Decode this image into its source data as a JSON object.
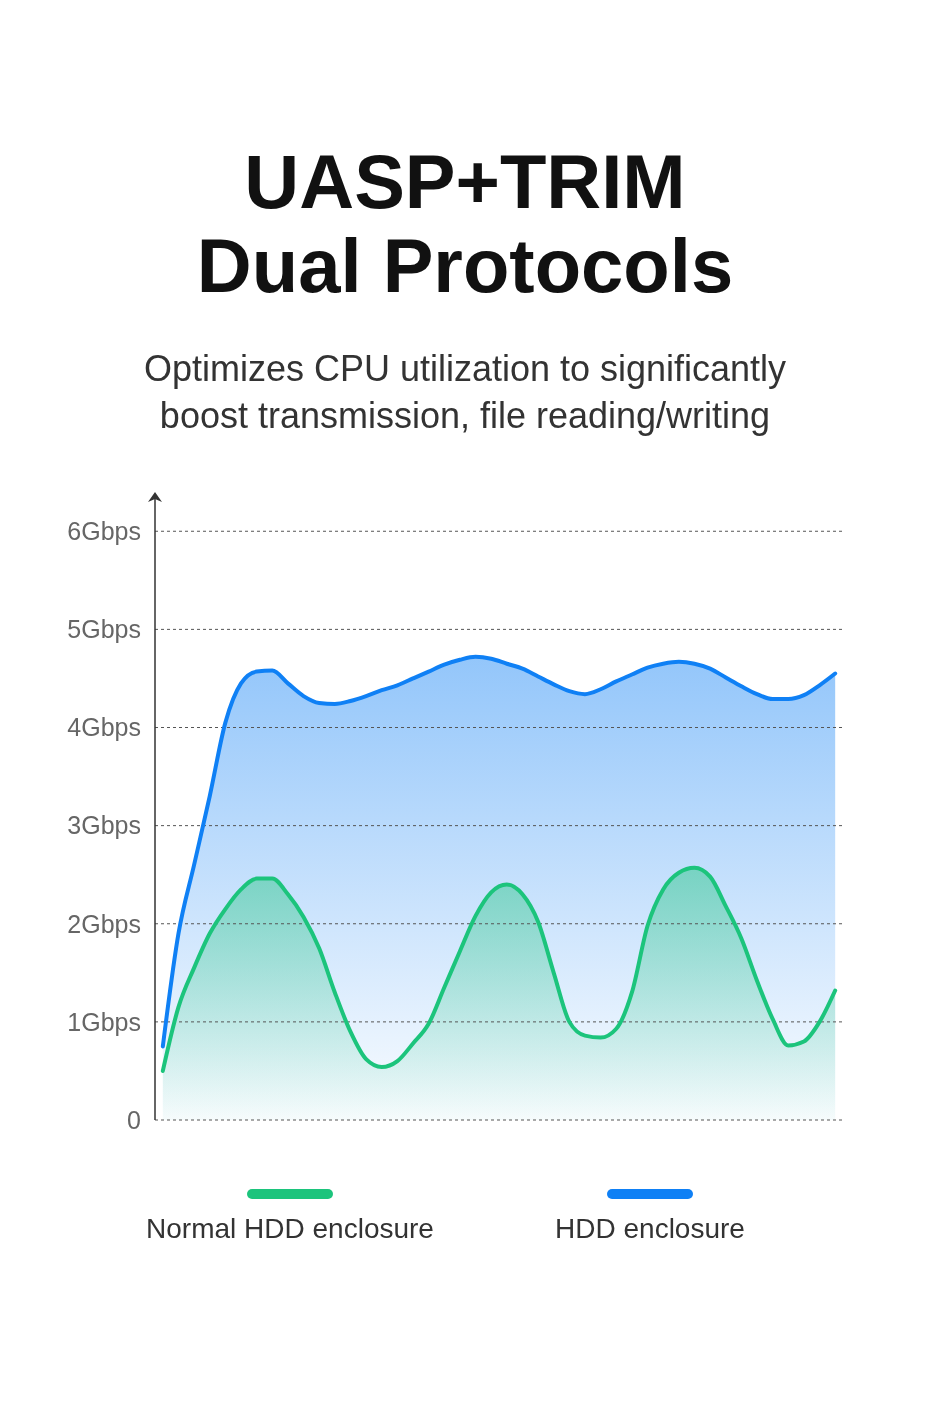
{
  "chart_data": {
    "type": "area",
    "title": "UASP+TRIM\nDual Protocols",
    "subtitle": "Optimizes CPU utilization to significantly\nboost transmission, file reading/writing",
    "categories": [
      null,
      null,
      null,
      null,
      null,
      null,
      null,
      null,
      null,
      null,
      null,
      null,
      null,
      null,
      null,
      null,
      null,
      null,
      null,
      null,
      null,
      null,
      null,
      null,
      null,
      null,
      null,
      null,
      null,
      null,
      null,
      null,
      null,
      null,
      null,
      null,
      null,
      null,
      null,
      null,
      null,
      null,
      null,
      null
    ],
    "series": [
      {
        "name": "Normal HDD enclosure",
        "color": "#1cc47c",
        "values": [
          0.5,
          1.15,
          1.55,
          1.9,
          2.15,
          2.35,
          2.46,
          2.46,
          2.3,
          2.07,
          1.75,
          1.3,
          0.9,
          0.62,
          0.54,
          0.6,
          0.78,
          0.98,
          1.35,
          1.72,
          2.08,
          2.32,
          2.4,
          2.3,
          2.02,
          1.5,
          1.0,
          0.86,
          0.84,
          0.93,
          1.3,
          1.98,
          2.35,
          2.52,
          2.57,
          2.48,
          2.18,
          1.85,
          1.42,
          1.03,
          0.76,
          0.8,
          1.0,
          1.32
        ]
      },
      {
        "name": "HDD enclosure",
        "color": "#0f80f5",
        "values": [
          0.75,
          1.9,
          2.6,
          3.3,
          4.05,
          4.45,
          4.57,
          4.58,
          4.45,
          4.32,
          4.25,
          4.24,
          4.27,
          4.32,
          4.38,
          4.43,
          4.5,
          4.57,
          4.64,
          4.69,
          4.72,
          4.7,
          4.65,
          4.6,
          4.52,
          4.44,
          4.37,
          4.34,
          4.39,
          4.47,
          4.54,
          4.61,
          4.65,
          4.67,
          4.65,
          4.6,
          4.51,
          4.42,
          4.34,
          4.29,
          4.29,
          4.33,
          4.43,
          4.55
        ]
      }
    ],
    "ylim": [
      0,
      6.4
    ],
    "yticks": [
      0,
      {
        "value": 1,
        "label": "1Gbps"
      },
      {
        "value": 2,
        "label": "2Gbps"
      },
      {
        "value": 3,
        "label": "3Gbps"
      },
      {
        "value": 4,
        "label": "4Gbps"
      },
      {
        "value": 5,
        "label": "5Gbps"
      },
      {
        "value": 6,
        "label": "6Gbps"
      }
    ],
    "grid": "y",
    "legend": "bottom"
  }
}
